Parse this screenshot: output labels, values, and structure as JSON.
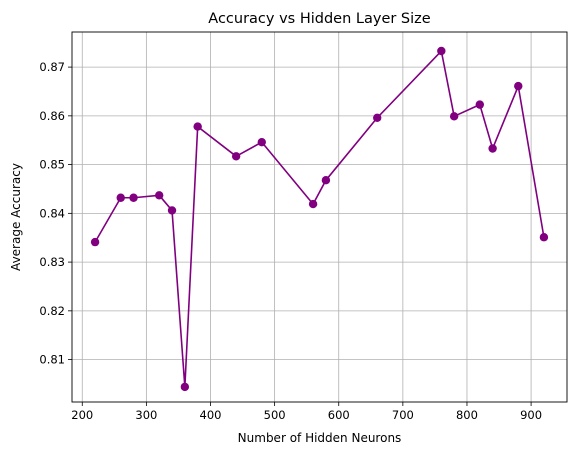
{
  "chart_data": {
    "type": "line",
    "title": "Accuracy vs Hidden Layer Size",
    "xlabel": "Number of Hidden Neurons",
    "ylabel": "Average Accuracy",
    "xlim": [
      184,
      956
    ],
    "ylim": [
      0.8013,
      0.8772
    ],
    "xticks": [
      200,
      300,
      400,
      500,
      600,
      700,
      800,
      900
    ],
    "yticks": [
      0.81,
      0.82,
      0.83,
      0.84,
      0.85,
      0.86,
      0.87
    ],
    "xtick_labels": [
      "200",
      "300",
      "400",
      "500",
      "600",
      "700",
      "800",
      "900"
    ],
    "ytick_labels": [
      "0.81",
      "0.82",
      "0.83",
      "0.84",
      "0.85",
      "0.86",
      "0.87"
    ],
    "grid": true,
    "color": "#800080",
    "series": [
      {
        "x": [
          220,
          260,
          280,
          320,
          340,
          360,
          380,
          440,
          480,
          560,
          580,
          660,
          760,
          780,
          820,
          840,
          880,
          920
        ],
        "y": [
          0.8341,
          0.8432,
          0.8432,
          0.8437,
          0.8406,
          0.8044,
          0.8578,
          0.8517,
          0.8546,
          0.8419,
          0.8468,
          0.8596,
          0.8733,
          0.8599,
          0.8623,
          0.8533,
          0.8661,
          0.8351
        ]
      }
    ]
  }
}
